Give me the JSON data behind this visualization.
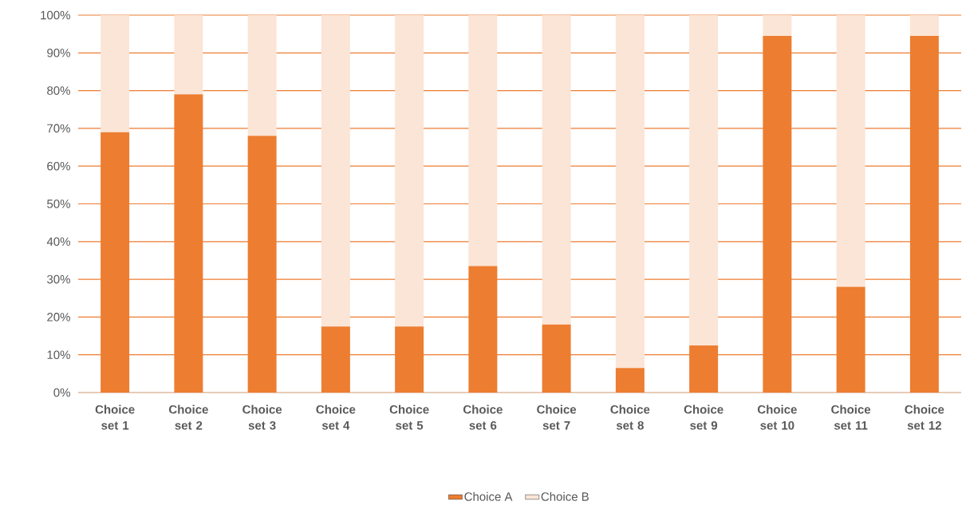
{
  "chart_data": {
    "type": "bar",
    "stacked": true,
    "categories": [
      "Choice set 1",
      "Choice set 2",
      "Choice set 3",
      "Choice set 4",
      "Choice set 5",
      "Choice set 6",
      "Choice set 7",
      "Choice set 8",
      "Choice set 9",
      "Choice set 10",
      "Choice set 11",
      "Choice set 12"
    ],
    "series": [
      {
        "name": "Choice A",
        "color": "#ed7d31",
        "values": [
          69,
          79,
          68,
          17.5,
          17.5,
          33.5,
          18,
          6.5,
          12.5,
          94.5,
          28,
          94.5
        ]
      },
      {
        "name": "Choice B",
        "color": "#fbe5d6",
        "values": [
          31,
          21,
          32,
          82.5,
          82.5,
          66.5,
          82,
          93.5,
          87.5,
          5.5,
          72,
          5.5
        ]
      }
    ],
    "ylim": [
      0,
      100
    ],
    "yticks": [
      {
        "value": 0,
        "label": "0%"
      },
      {
        "value": 10,
        "label": "10%"
      },
      {
        "value": 20,
        "label": "20%"
      },
      {
        "value": 30,
        "label": "30%"
      },
      {
        "value": 40,
        "label": "40%"
      },
      {
        "value": 50,
        "label": "50%"
      },
      {
        "value": 60,
        "label": "60%"
      },
      {
        "value": 70,
        "label": "70%"
      },
      {
        "value": 80,
        "label": "80%"
      },
      {
        "value": 90,
        "label": "90%"
      },
      {
        "value": 100,
        "label": "100%"
      }
    ],
    "grid": "y",
    "legend": "bottom"
  }
}
